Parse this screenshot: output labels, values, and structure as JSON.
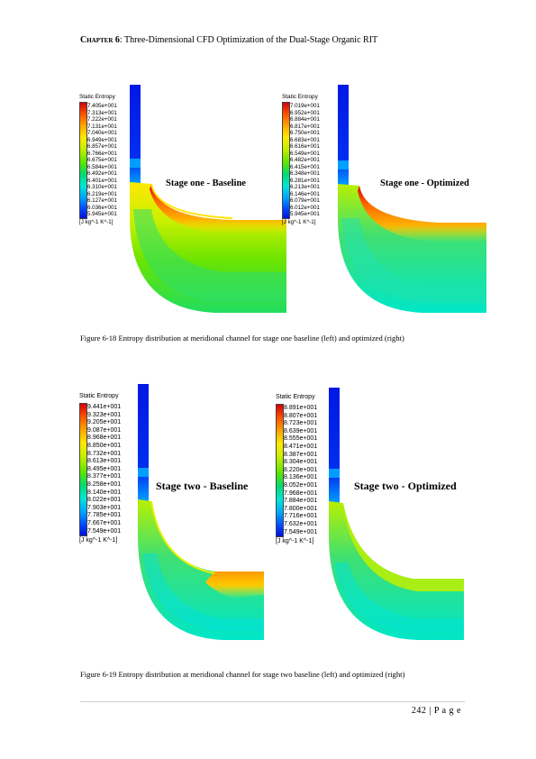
{
  "header": {
    "chapter": "Chapter 6",
    "title": ": Three-Dimensional CFD Optimization of the Dual-Stage Organic RIT"
  },
  "figures": [
    {
      "caption": "Figure 6-18 Entropy distribution at meridional channel for stage one baseline (left) and optimized (right)",
      "panels": [
        {
          "legend_title": "Static Entropy",
          "ticks": [
            "7.405e+001",
            "7.313e+001",
            "7.222e+001",
            "7.131e+001",
            "7.040e+001",
            "6.949e+001",
            "6.857e+001",
            "6.766e+001",
            "6.675e+001",
            "6.584e+001",
            "6.492e+001",
            "6.401e+001",
            "6.310e+001",
            "6.219e+001",
            "6.127e+001",
            "6.036e+001",
            "5.945e+001"
          ],
          "unit": "[J kg^-1 K^-1]",
          "label": "Stage one - Baseline"
        },
        {
          "legend_title": "Static Entropy",
          "ticks": [
            "7.019e+001",
            "6.952e+001",
            "6.884e+001",
            "6.817e+001",
            "6.750e+001",
            "6.683e+001",
            "6.616e+001",
            "6.549e+001",
            "6.482e+001",
            "6.415e+001",
            "6.348e+001",
            "6.281e+001",
            "6.213e+001",
            "6.146e+001",
            "6.079e+001",
            "6.012e+001",
            "5.945e+001"
          ],
          "unit": "[J kg^-1 K^-1]",
          "label": "Stage one - Optimized"
        }
      ]
    },
    {
      "caption": "Figure 6-19 Entropy distribution at meridional channel for stage two baseline (left) and optimized (right)",
      "panels": [
        {
          "legend_title": "Static Entropy",
          "ticks": [
            "9.441e+001",
            "9.323e+001",
            "9.205e+001",
            "9.087e+001",
            "8.968e+001",
            "8.850e+001",
            "8.732e+001",
            "8.613e+001",
            "8.495e+001",
            "8.377e+001",
            "8.258e+001",
            "8.140e+001",
            "8.022e+001",
            "7.903e+001",
            "7.785e+001",
            "7.667e+001",
            "7.549e+001"
          ],
          "unit": "[J kg^-1 K^-1]",
          "label": "Stage two - Baseline"
        },
        {
          "legend_title": "Static Entropy",
          "ticks": [
            "8.891e+001",
            "8.807e+001",
            "8.723e+001",
            "8.639e+001",
            "8.555e+001",
            "8.471e+001",
            "8.387e+001",
            "8.304e+001",
            "8.220e+001",
            "8.136e+001",
            "8.052e+001",
            "7.968e+001",
            "7.884e+001",
            "7.800e+001",
            "7.716e+001",
            "7.632e+001",
            "7.549e+001"
          ],
          "unit": "[J kg^-1 K^-1]",
          "label": "Stage two - Optimized"
        }
      ]
    }
  ],
  "footer": {
    "page": "242 | P a g e"
  }
}
